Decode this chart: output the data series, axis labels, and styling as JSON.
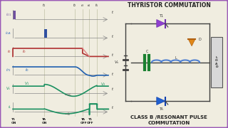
{
  "bg_color": "#f0ede0",
  "border_color": "#9b59b6",
  "title_text": "THYRISTOR COMMUTATION",
  "subtitle_line1": "CLASS B /RESONANT PULSE",
  "subtitle_line2": "COMMUTATION",
  "wave1_color": "#7b5ea7",
  "wave2_color": "#3a6fbe",
  "wave3_color": "#b03030",
  "wave4_color": "#2060b0",
  "wave5_color": "#1a9060",
  "wave6_color": "#1a9060",
  "grid_color": "#c8c8b0",
  "axis_color": "#888888",
  "text_color": "#222222",
  "t1_thyristor_color": "#8040c0",
  "ta_thyristor_color": "#2050c0",
  "diode_color": "#d08010",
  "cap_color": "#1a8030",
  "inductor_color": "#5080d0",
  "load_color": "#888888",
  "wire_color": "#404040",
  "bat_color": "#404040"
}
